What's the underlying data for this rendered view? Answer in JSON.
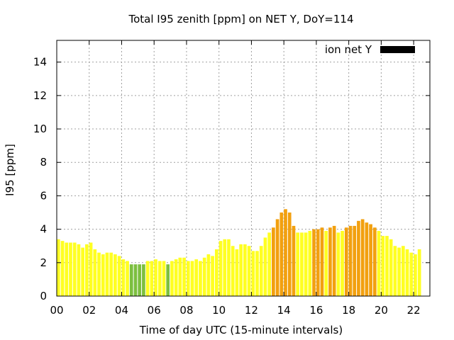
{
  "chart_data": {
    "type": "bar",
    "title": "Total I95 zenith [ppm] on NET Y, DoY=114",
    "xlabel": "Time of day UTC (15-minute intervals)",
    "ylabel": "I95 [ppm]",
    "ylim": [
      0,
      15.3
    ],
    "xlim": [
      0,
      23
    ],
    "y_ticks": [
      0,
      2,
      4,
      6,
      8,
      10,
      12,
      14
    ],
    "x_ticks": [
      "00",
      "02",
      "04",
      "06",
      "08",
      "10",
      "12",
      "14",
      "16",
      "18",
      "20",
      "22"
    ],
    "grid": true,
    "interval_hours": 0.25,
    "legend": {
      "label": "ion net Y",
      "color": "#000000",
      "position": "top-right"
    },
    "colors": {
      "yellow": "#ffff22",
      "orange": "#f2a00f",
      "green": "#7cbf3f"
    },
    "values": [
      3.4,
      3.3,
      3.2,
      3.2,
      3.2,
      3.1,
      2.9,
      3.1,
      3.2,
      2.8,
      2.6,
      2.5,
      2.6,
      2.6,
      2.5,
      2.4,
      2.2,
      2.1,
      1.9,
      1.9,
      1.9,
      1.9,
      2.1,
      2.1,
      2.2,
      2.1,
      2.1,
      1.9,
      2.1,
      2.2,
      2.3,
      2.3,
      2.1,
      2.1,
      2.2,
      2.1,
      2.3,
      2.5,
      2.4,
      2.8,
      3.3,
      3.4,
      3.4,
      3.0,
      2.8,
      3.1,
      3.1,
      3.0,
      2.7,
      2.7,
      3.0,
      3.5,
      3.8,
      4.1,
      4.6,
      5.0,
      5.2,
      5.0,
      4.2,
      3.8,
      3.8,
      3.8,
      3.9,
      4.0,
      4.0,
      4.1,
      3.9,
      4.1,
      4.2,
      3.8,
      3.9,
      4.1,
      4.2,
      4.2,
      4.5,
      4.6,
      4.4,
      4.3,
      4.1,
      3.9,
      3.6,
      3.6,
      3.4,
      3.0,
      2.9,
      3.0,
      2.8,
      2.6,
      2.5,
      2.8
    ],
    "bar_colors": [
      "yellow",
      "yellow",
      "yellow",
      "yellow",
      "yellow",
      "yellow",
      "yellow",
      "yellow",
      "yellow",
      "yellow",
      "yellow",
      "yellow",
      "yellow",
      "yellow",
      "yellow",
      "yellow",
      "yellow",
      "yellow",
      "green",
      "green",
      "green",
      "green",
      "yellow",
      "yellow",
      "yellow",
      "yellow",
      "yellow",
      "green",
      "yellow",
      "yellow",
      "yellow",
      "yellow",
      "yellow",
      "yellow",
      "yellow",
      "yellow",
      "yellow",
      "yellow",
      "yellow",
      "yellow",
      "yellow",
      "yellow",
      "yellow",
      "yellow",
      "yellow",
      "yellow",
      "yellow",
      "yellow",
      "yellow",
      "yellow",
      "yellow",
      "yellow",
      "yellow",
      "orange",
      "orange",
      "orange",
      "orange",
      "orange",
      "orange",
      "yellow",
      "yellow",
      "yellow",
      "yellow",
      "orange",
      "orange",
      "orange",
      "yellow",
      "orange",
      "orange",
      "yellow",
      "yellow",
      "orange",
      "orange",
      "orange",
      "orange",
      "orange",
      "orange",
      "orange",
      "orange",
      "yellow",
      "yellow",
      "yellow",
      "yellow",
      "yellow",
      "yellow",
      "yellow",
      "yellow",
      "yellow",
      "yellow",
      "yellow"
    ]
  }
}
